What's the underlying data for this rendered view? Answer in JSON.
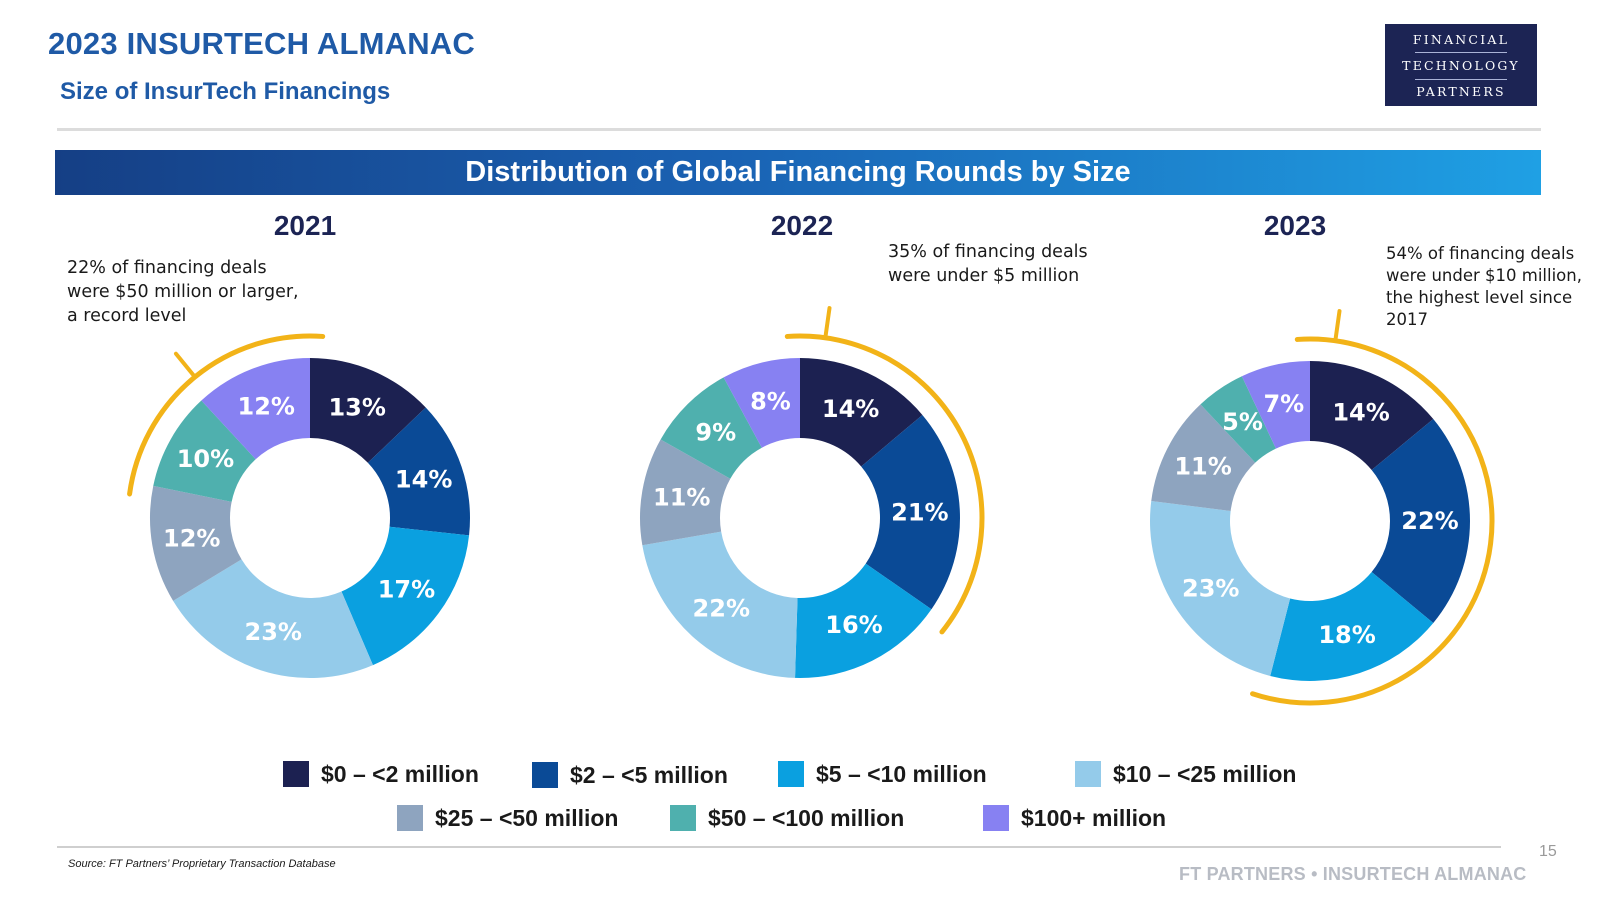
{
  "header": {
    "title": "2023 INSURTECH ALMANAC",
    "subtitle": "Size of InsurTech Financings",
    "logo_lines": [
      "FINANCIAL",
      "TECHNOLOGY",
      "PARTNERS"
    ]
  },
  "banner": {
    "title": "Distribution of Global Financing Rounds by Size"
  },
  "colors": {
    "accent_arc": "#f2b318",
    "banner_start": "#153f85",
    "banner_end": "#1fa0e4"
  },
  "chart_data": [
    {
      "type": "pie",
      "subtype": "donut",
      "title": "2021",
      "categories": [
        "$0 – <2 million",
        "$2 – <5 million",
        "$5 – <10 million",
        "$10 – <25 million",
        "$25 – <50 million",
        "$50 – <100 million",
        "$100+ million"
      ],
      "values": [
        13,
        14,
        17,
        23,
        12,
        10,
        12
      ],
      "labels": [
        "13%",
        "14%",
        "17%",
        "23%",
        "12%",
        "10%",
        "12%"
      ],
      "annotation": "22% of financing deals were $50 million or larger, a record level",
      "highlighted_categories": [
        "$50 – <100 million",
        "$100+ million"
      ]
    },
    {
      "type": "pie",
      "subtype": "donut",
      "title": "2022",
      "categories": [
        "$0 – <2 million",
        "$2 – <5 million",
        "$5 – <10 million",
        "$10 – <25 million",
        "$25 – <50 million",
        "$50 – <100 million",
        "$100+ million"
      ],
      "values": [
        14,
        21,
        16,
        22,
        11,
        9,
        8
      ],
      "labels": [
        "14%",
        "21%",
        "16%",
        "22%",
        "11%",
        "9%",
        "8%"
      ],
      "annotation": "35% of financing deals were under $5 million",
      "highlighted_categories": [
        "$0 – <2 million",
        "$2 – <5 million"
      ]
    },
    {
      "type": "pie",
      "subtype": "donut",
      "title": "2023",
      "categories": [
        "$0 – <2 million",
        "$2 – <5 million",
        "$5 – <10 million",
        "$10 – <25 million",
        "$25 – <50 million",
        "$50 – <100 million",
        "$100+ million"
      ],
      "values": [
        14,
        22,
        18,
        23,
        11,
        5,
        7
      ],
      "labels": [
        "14%",
        "22%",
        "18%",
        "23%",
        "11%",
        "5%",
        "7%"
      ],
      "annotation": "54% of financing deals were under $10 million, the highest level since 2017",
      "highlighted_categories": [
        "$0 – <2 million",
        "$2 – <5 million",
        "$5 – <10 million"
      ]
    }
  ],
  "legend": [
    {
      "label": "$0 – <2 million",
      "color": "#1c2151"
    },
    {
      "label": "$2 – <5 million",
      "color": "#0a4a96"
    },
    {
      "label": "$5 – <10 million",
      "color": "#0aa0e0"
    },
    {
      "label": "$10 – <25 million",
      "color": "#94cbea"
    },
    {
      "label": "$25 – <50 million",
      "color": "#8ea4bf"
    },
    {
      "label": "$50 – <100 million",
      "color": "#4fb0ae"
    },
    {
      "label": "$100+ million",
      "color": "#8781f2"
    }
  ],
  "footer": {
    "source": "Source: FT Partners’ Proprietary Transaction Database",
    "brand": "FT PARTNERS • INSURTECH ALMANAC",
    "page": "15"
  }
}
